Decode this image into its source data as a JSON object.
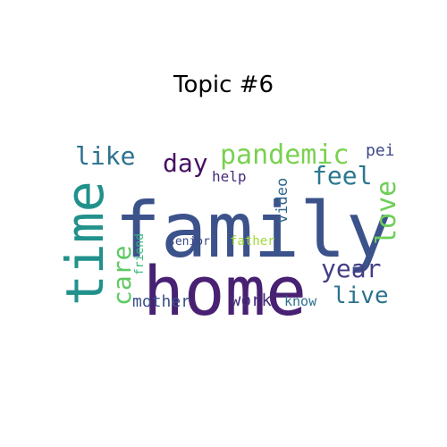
{
  "title": "Topic #6",
  "words": [
    {
      "text": "family",
      "color": "#3b528b"
    },
    {
      "text": "home",
      "color": "#482173"
    },
    {
      "text": "time",
      "color": "#21918c"
    },
    {
      "text": "pandemic",
      "color": "#7ad151"
    },
    {
      "text": "like",
      "color": "#2c728e"
    },
    {
      "text": "day",
      "color": "#471063"
    },
    {
      "text": "feel",
      "color": "#2a788e"
    },
    {
      "text": "love",
      "color": "#6ece58"
    },
    {
      "text": "year",
      "color": "#433e85"
    },
    {
      "text": "live",
      "color": "#2c728e"
    },
    {
      "text": "care",
      "color": "#5ec962"
    },
    {
      "text": "video",
      "color": "#31688e"
    },
    {
      "text": "help",
      "color": "#472d7b"
    },
    {
      "text": "pei",
      "color": "#3e4989"
    },
    {
      "text": "mother",
      "color": "#3b528b"
    },
    {
      "text": "work",
      "color": "#472d7b"
    },
    {
      "text": "know",
      "color": "#2c728e"
    },
    {
      "text": "senior",
      "color": "#3e4989"
    },
    {
      "text": "father",
      "color": "#a0da39"
    },
    {
      "text": "friend",
      "color": "#35b779"
    }
  ]
}
